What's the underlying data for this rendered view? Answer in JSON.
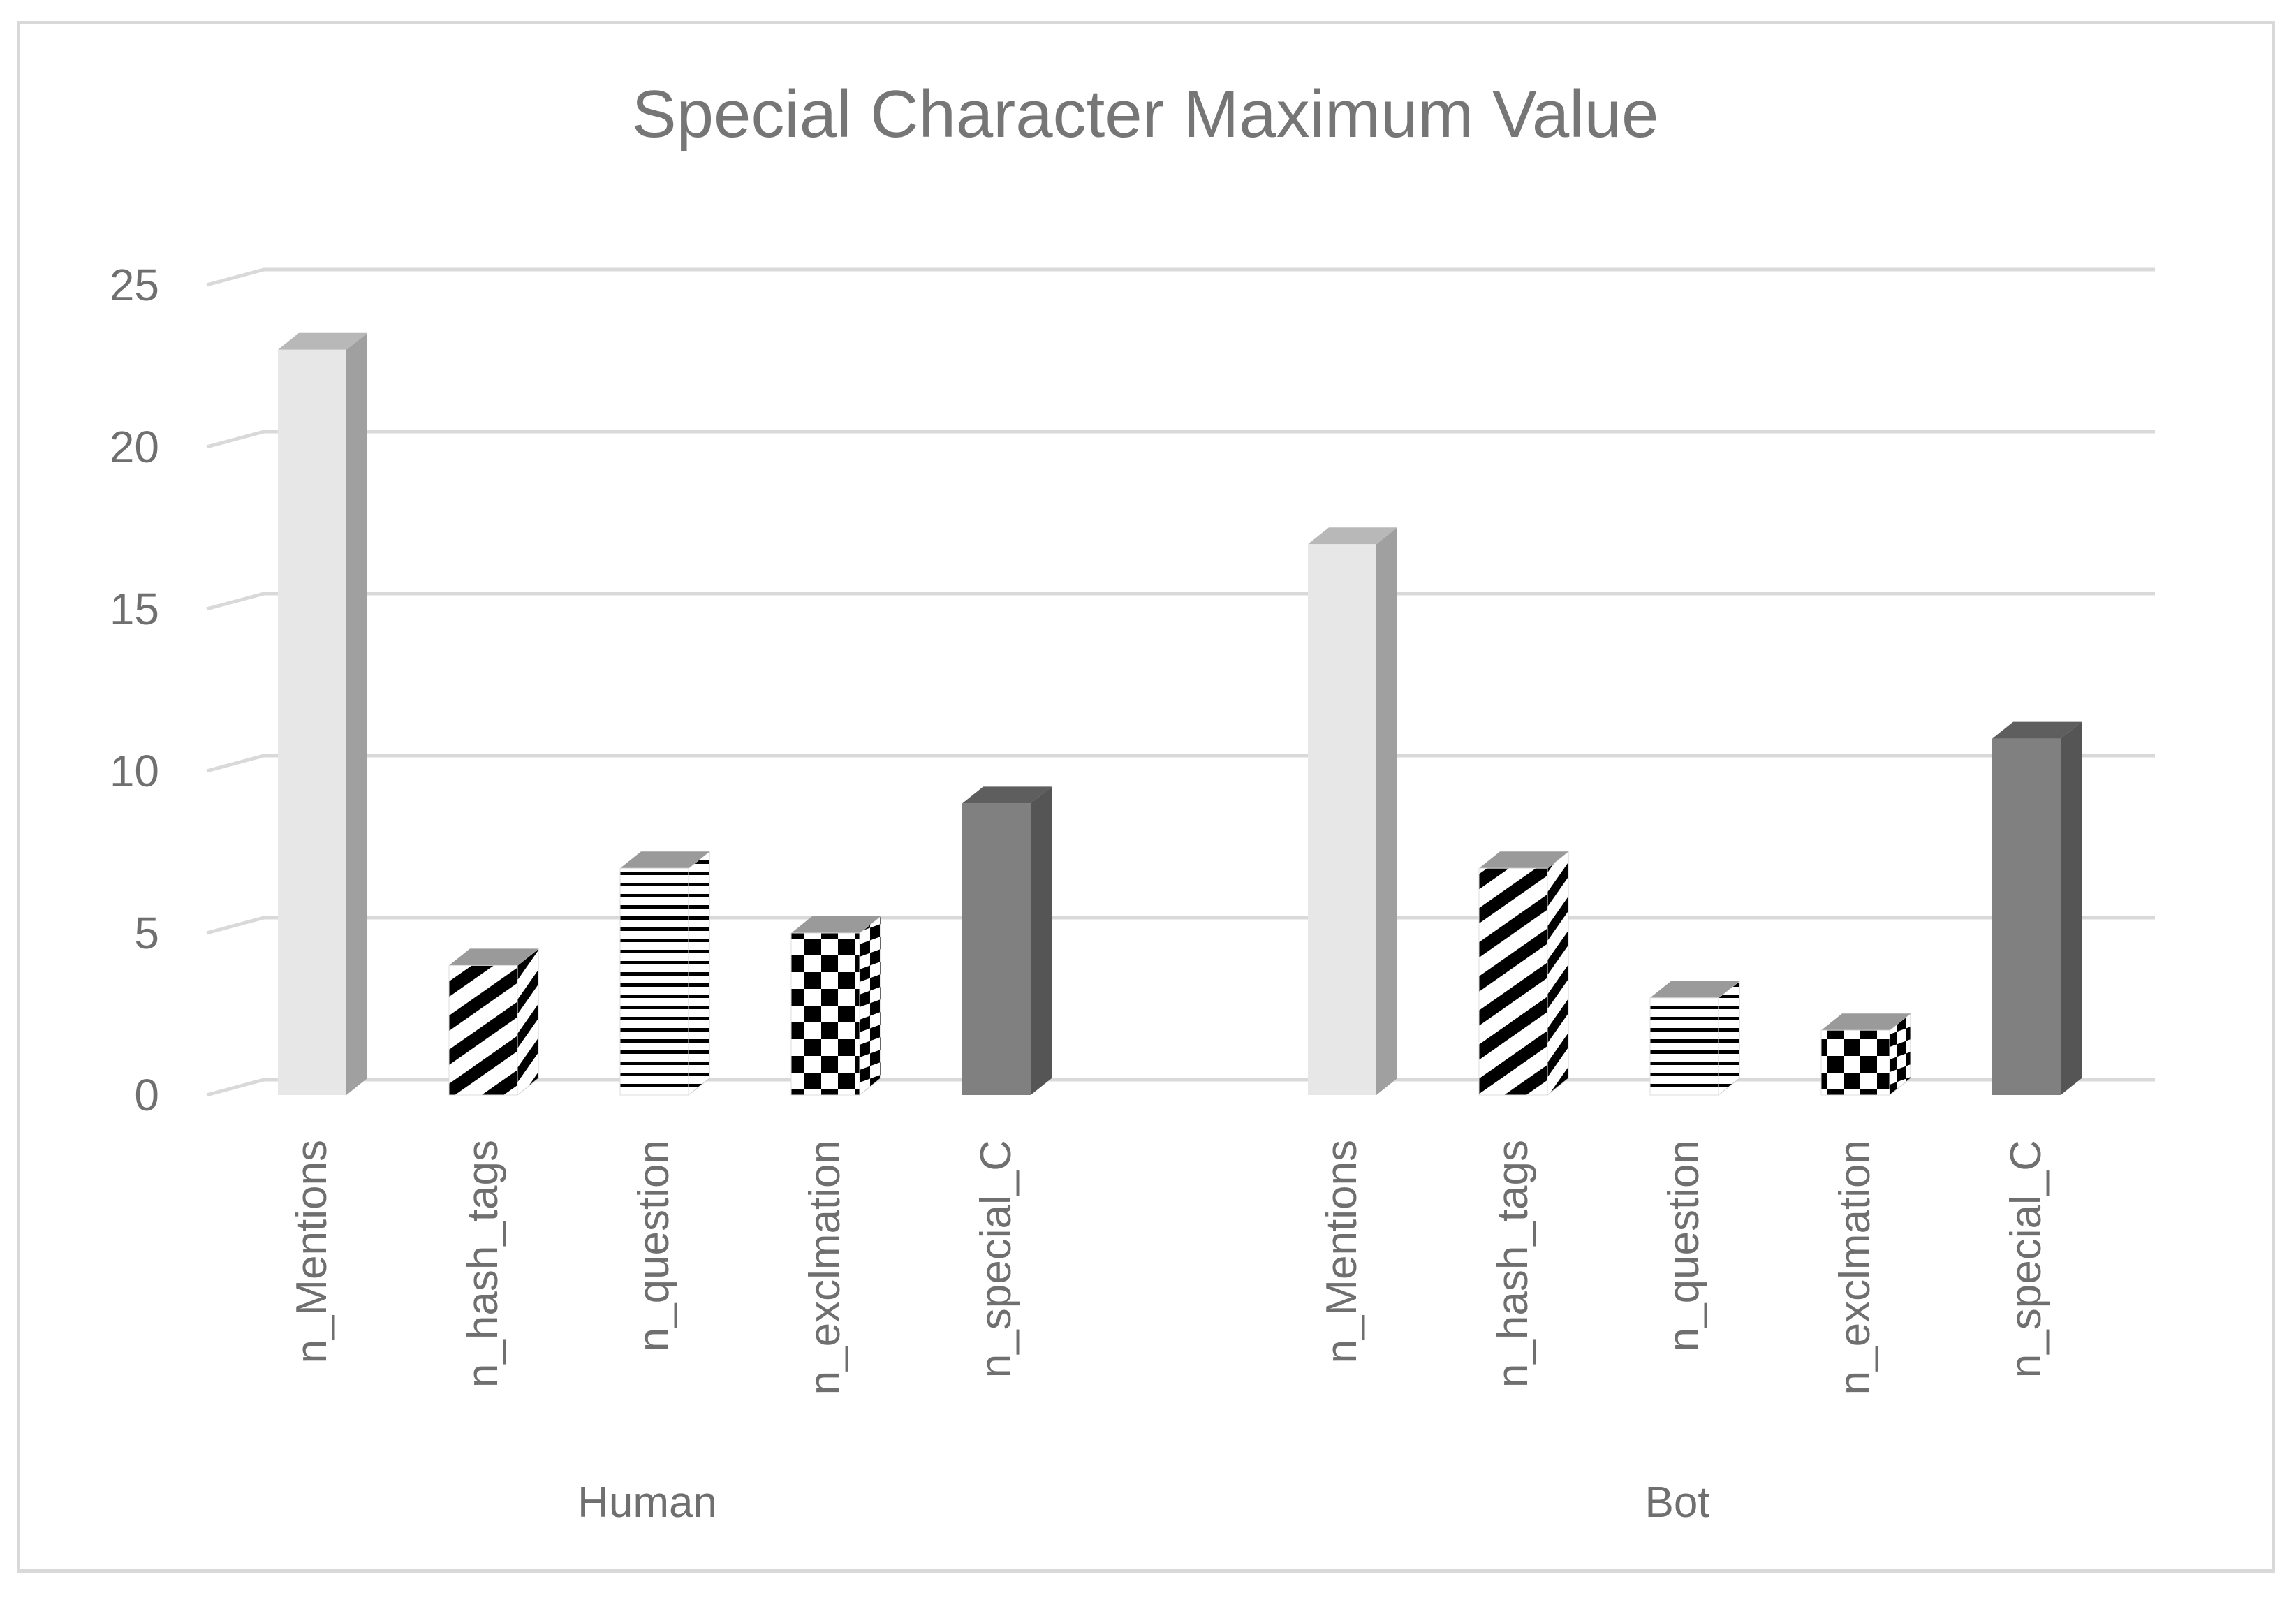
{
  "chart_data": {
    "type": "bar",
    "title": "Special Character Maximum Value",
    "xlabel": "",
    "ylabel": "",
    "ylim": [
      0,
      25
    ],
    "yticks": [
      0,
      5,
      10,
      15,
      20,
      25
    ],
    "grid": true,
    "legend": "none",
    "style": "3d-clustered-column",
    "groups": [
      {
        "name": "Human",
        "categories": [
          "n_Mentions",
          "n_hash_tags",
          "n_question",
          "n_exclmation",
          "n_special_C"
        ],
        "values": [
          23,
          4,
          7,
          5,
          9
        ]
      },
      {
        "name": "Bot",
        "categories": [
          "n_Mentions",
          "n_hash_tags",
          "n_question",
          "n_exclmation",
          "n_special_C"
        ],
        "values": [
          17,
          7,
          3,
          2,
          11
        ]
      }
    ],
    "bar_styles": [
      {
        "category": "n_Mentions",
        "pattern": "solid",
        "color": "#e7e7e7",
        "side_color": "#a0a0a0"
      },
      {
        "category": "n_hash_tags",
        "pattern": "diagonal-stripes",
        "color": "#000000",
        "side_color": "#ffffff"
      },
      {
        "category": "n_question",
        "pattern": "horizontal-lines",
        "color": "#000000",
        "side_color": "#ffffff"
      },
      {
        "category": "n_exclmation",
        "pattern": "checkerboard",
        "color": "#000000",
        "side_color": "#ffffff"
      },
      {
        "category": "n_special_C",
        "pattern": "solid",
        "color": "#808080",
        "side_color": "#555555"
      }
    ],
    "colors": {
      "grid": "#d9d9d9",
      "text": "#6f6f6f",
      "title": "#767676"
    }
  }
}
